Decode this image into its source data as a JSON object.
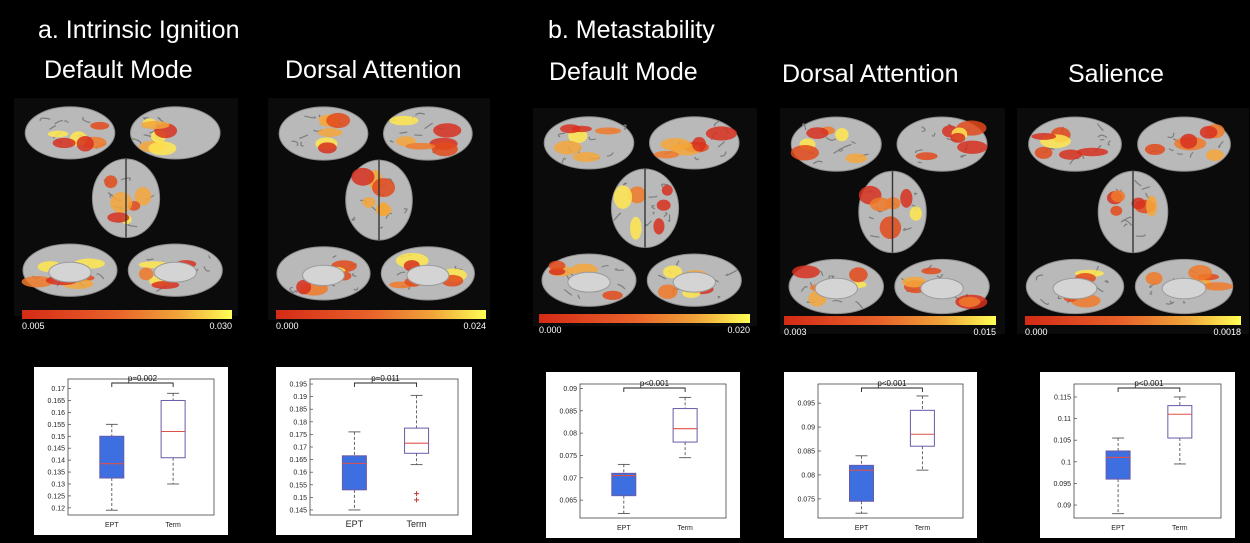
{
  "headers": {
    "section_a": "a. Intrinsic Ignition",
    "section_b": "b. Metastability"
  },
  "panels": [
    {
      "network": "Default Mode",
      "colorbar_min": "0.005",
      "colorbar_max": "0.030"
    },
    {
      "network": "Dorsal Attention",
      "colorbar_min": "0.000",
      "colorbar_max": "0.024"
    },
    {
      "network": "Default Mode",
      "colorbar_min": "0.000",
      "colorbar_max": "0.020"
    },
    {
      "network": "Dorsal Attention",
      "colorbar_min": "0.003",
      "colorbar_max": "0.015"
    },
    {
      "network": "Salience",
      "colorbar_min": "0.000",
      "colorbar_max": "0.0018"
    }
  ],
  "colors": {
    "ept_box": "#3d6fe0",
    "term_box": "#ffffff",
    "median": "#e0504a",
    "box_edge": "#6a5aa8"
  },
  "chart_data": [
    {
      "type": "box",
      "section": "a",
      "network": "Default Mode",
      "categories": [
        "EPT",
        "Term"
      ],
      "annotation": "p=0.002",
      "yticks": [
        "0.12",
        "0.125",
        "0.13",
        "0.135",
        "0.14",
        "0.145",
        "0.15",
        "0.155",
        "0.16",
        "0.165",
        "0.17"
      ],
      "ylim": [
        0.117,
        0.174
      ],
      "boxes": [
        {
          "whislo": 0.119,
          "q1": 0.1325,
          "med": 0.1385,
          "q3": 0.15,
          "whishi": 0.155
        },
        {
          "whislo": 0.13,
          "q1": 0.141,
          "med": 0.152,
          "q3": 0.165,
          "whishi": 0.168
        }
      ],
      "fliers": [
        [],
        []
      ]
    },
    {
      "type": "box",
      "section": "a",
      "network": "Dorsal Attention",
      "categories": [
        "EPT",
        "Term"
      ],
      "annotation": "p=0.011",
      "yticks": [
        "0.145",
        "0.15",
        "0.155",
        "0.16",
        "0.165",
        "0.17",
        "0.175",
        "0.18",
        "0.185",
        "0.19",
        "0.195"
      ],
      "ylim": [
        0.143,
        0.197
      ],
      "boxes": [
        {
          "whislo": 0.145,
          "q1": 0.153,
          "med": 0.1635,
          "q3": 0.1665,
          "whishi": 0.176
        },
        {
          "whislo": 0.163,
          "q1": 0.1675,
          "med": 0.1715,
          "q3": 0.1775,
          "whishi": 0.1905
        }
      ],
      "fliers": [
        [],
        [
          0.149,
          0.1515
        ]
      ]
    },
    {
      "type": "box",
      "section": "b",
      "network": "Default Mode",
      "categories": [
        "EPT",
        "Term"
      ],
      "annotation": "p<0.001",
      "yticks": [
        "0.065",
        "0.07",
        "0.075",
        "0.08",
        "0.085",
        "0.09"
      ],
      "ylim": [
        0.061,
        0.091
      ],
      "boxes": [
        {
          "whislo": 0.062,
          "q1": 0.066,
          "med": 0.0705,
          "q3": 0.071,
          "whishi": 0.073
        },
        {
          "whislo": 0.0745,
          "q1": 0.078,
          "med": 0.081,
          "q3": 0.0855,
          "whishi": 0.088
        }
      ],
      "fliers": [
        [],
        []
      ]
    },
    {
      "type": "box",
      "section": "b",
      "network": "Dorsal Attention",
      "categories": [
        "EPT",
        "Term"
      ],
      "annotation": "p<0.001",
      "yticks": [
        "0.075",
        "0.08",
        "0.085",
        "0.09",
        "0.095"
      ],
      "ylim": [
        0.071,
        0.099
      ],
      "boxes": [
        {
          "whislo": 0.072,
          "q1": 0.0745,
          "med": 0.081,
          "q3": 0.082,
          "whishi": 0.084
        },
        {
          "whislo": 0.081,
          "q1": 0.086,
          "med": 0.0885,
          "q3": 0.0935,
          "whishi": 0.0965
        }
      ],
      "fliers": [
        [],
        []
      ]
    },
    {
      "type": "box",
      "section": "b",
      "network": "Salience",
      "categories": [
        "EPT",
        "Term"
      ],
      "annotation": "p<0.001",
      "yticks": [
        "0.09",
        "0.095",
        "0.1",
        "0.105",
        "0.11",
        "0.115"
      ],
      "ylim": [
        0.087,
        0.118
      ],
      "boxes": [
        {
          "whislo": 0.088,
          "q1": 0.096,
          "med": 0.101,
          "q3": 0.1025,
          "whishi": 0.1055
        },
        {
          "whislo": 0.0995,
          "q1": 0.1055,
          "med": 0.111,
          "q3": 0.113,
          "whishi": 0.115
        }
      ],
      "fliers": [
        [],
        []
      ]
    }
  ]
}
